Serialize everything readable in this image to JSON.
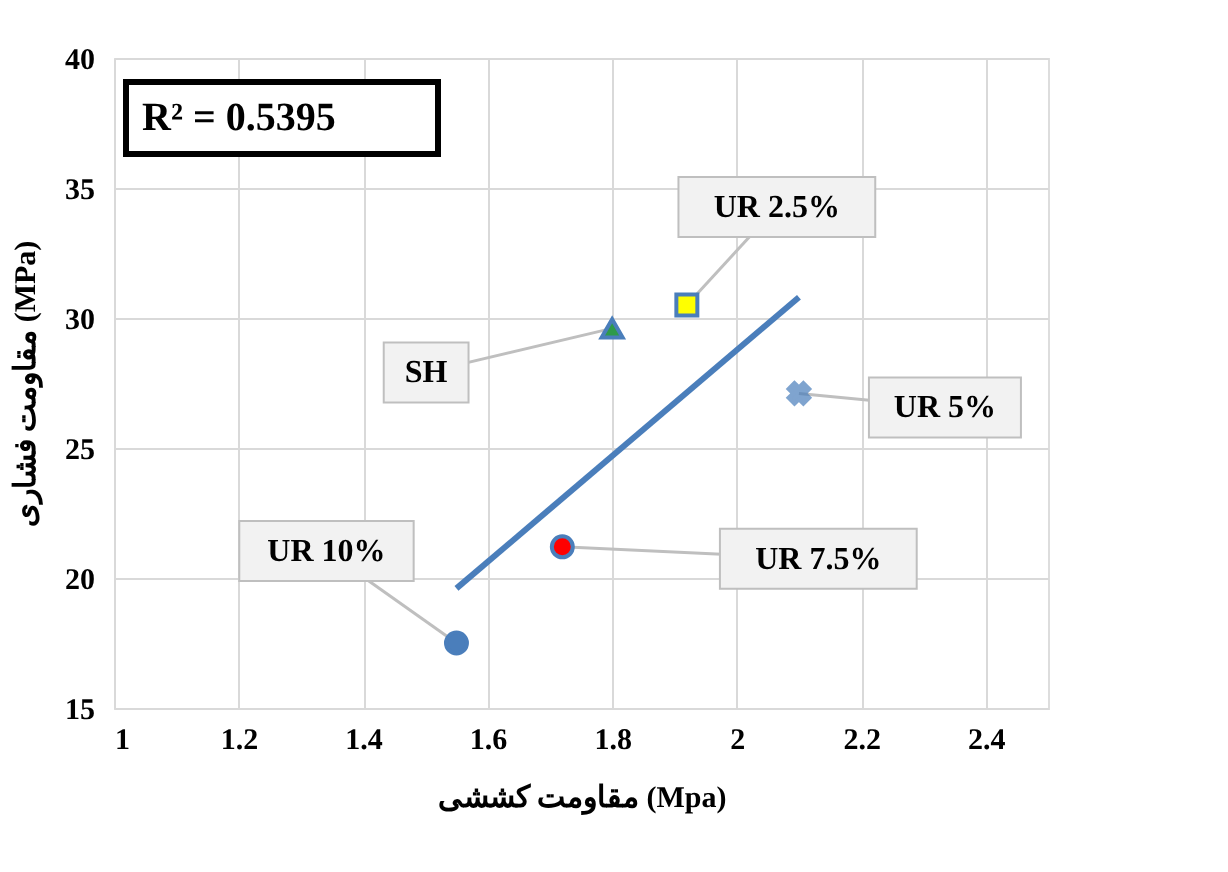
{
  "chart_data": {
    "type": "scatter",
    "xlabel": "مقاومت کششی (Mpa)",
    "ylabel": "مقاومت فشاری (MPa)",
    "xlim": [
      1,
      2.5
    ],
    "xticks": [
      1,
      1.2,
      1.4,
      1.6,
      1.8,
      2,
      2.2,
      2.4
    ],
    "ylim": [
      15,
      40
    ],
    "yticks": [
      15,
      20,
      25,
      30,
      35,
      40
    ],
    "grid": true,
    "legend": false,
    "annotations": [
      "R² = 0.5395"
    ],
    "series": [
      {
        "name": "UR 10%",
        "type": "scatter",
        "marker": "circle",
        "color": "#4a7ebb",
        "x": [
          1.55
        ],
        "values": [
          17.5
        ]
      },
      {
        "name": "SH",
        "type": "scatter",
        "marker": "triangle",
        "color": "#2e9a4a",
        "x": [
          1.8
        ],
        "values": [
          29.6
        ]
      },
      {
        "name": "UR 2.5%",
        "type": "scatter",
        "marker": "square",
        "color": "#ffff00",
        "x": [
          1.92
        ],
        "values": [
          30.5
        ]
      },
      {
        "name": "UR 5%",
        "type": "scatter",
        "marker": "cross",
        "color": "#4a7ebb",
        "x": [
          2.1
        ],
        "values": [
          27.1
        ]
      },
      {
        "name": "UR 7.5%",
        "type": "scatter",
        "marker": "circle",
        "color": "#ff0000",
        "x": [
          1.72
        ],
        "values": [
          21.2
        ]
      },
      {
        "type": "line",
        "color": "#4a7ebb",
        "x": [
          1.55,
          2.1
        ],
        "values": [
          19.6,
          30.8
        ]
      }
    ]
  }
}
